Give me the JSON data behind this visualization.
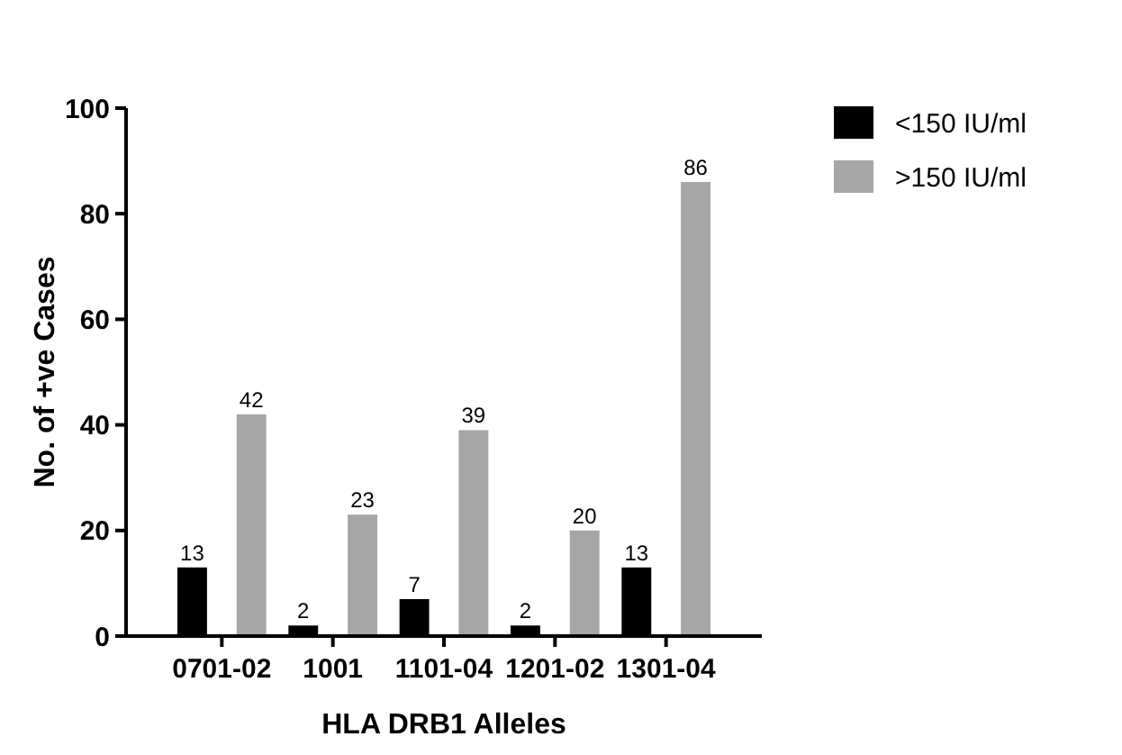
{
  "chart_data": {
    "type": "bar",
    "xlabel": "HLA DRB1 Alleles",
    "ylabel": "No. of +ve Cases",
    "categories": [
      "0701-02",
      "1001",
      "1101-04",
      "1201-02",
      "1301-04"
    ],
    "series": [
      {
        "name": "<150 IU/ml",
        "color": "#000000",
        "values": [
          13,
          2,
          7,
          2,
          13
        ]
      },
      {
        "name": ">150 IU/ml",
        "color": "#a6a6a6",
        "values": [
          42,
          23,
          39,
          20,
          86
        ]
      }
    ],
    "ylim": [
      0,
      100
    ],
    "yticks": [
      0,
      20,
      40,
      60,
      80,
      100
    ],
    "data_labels": true,
    "legend": "top right",
    "grid": false
  }
}
